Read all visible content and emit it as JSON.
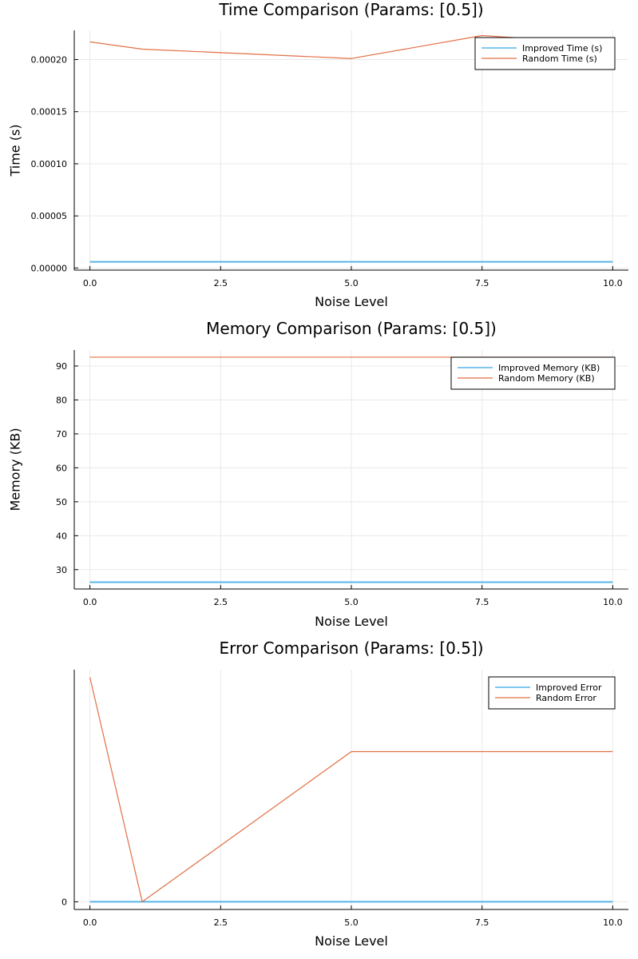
{
  "chart_data": [
    {
      "type": "line",
      "title": "Time Comparison (Params: [0.5])",
      "xlabel": "Noise Level",
      "ylabel": "Time (s)",
      "xlim": [
        -0.3,
        10.3
      ],
      "ylim": [
        -2e-06,
        0.000228
      ],
      "xticks": [
        0,
        2.5,
        5,
        7.5,
        10
      ],
      "xtick_labels": [
        "0.0",
        "2.5",
        "5.0",
        "7.5",
        "10.0"
      ],
      "yticks": [
        0,
        5e-05,
        0.0001,
        0.00015,
        0.0002
      ],
      "ytick_labels": [
        "0.00000",
        "0.00005",
        "0.00010",
        "0.00015",
        "0.00020"
      ],
      "grid": true,
      "legend_position": "top-right",
      "x": [
        0,
        1,
        5,
        7.5,
        10
      ],
      "series": [
        {
          "name": "Improved Time (s)",
          "color": "#56B4E9",
          "values": [
            6e-06,
            6e-06,
            6e-06,
            6e-06,
            6e-06
          ]
        },
        {
          "name": "Random Time (s)",
          "color": "#E26F46",
          "values": [
            0.000217,
            0.00021,
            0.000201,
            0.000223,
            0.000215
          ]
        }
      ]
    },
    {
      "type": "line",
      "title": "Memory Comparison (Params: [0.5])",
      "xlabel": "Noise Level",
      "ylabel": "Memory (KB)",
      "xlim": [
        -0.3,
        10.3
      ],
      "ylim": [
        24.3,
        94.7
      ],
      "xticks": [
        0,
        2.5,
        5,
        7.5,
        10
      ],
      "xtick_labels": [
        "0.0",
        "2.5",
        "5.0",
        "7.5",
        "10.0"
      ],
      "yticks": [
        30,
        40,
        50,
        60,
        70,
        80,
        90
      ],
      "ytick_labels": [
        "30",
        "40",
        "50",
        "60",
        "70",
        "80",
        "90"
      ],
      "grid": true,
      "legend_position": "top-right",
      "x": [
        0,
        1,
        5,
        7.5,
        10
      ],
      "series": [
        {
          "name": "Improved Memory (KB)",
          "color": "#56B4E9",
          "values": [
            26.3,
            26.3,
            26.3,
            26.3,
            26.3
          ]
        },
        {
          "name": "Random Memory (KB)",
          "color": "#E26F46",
          "values": [
            92.6,
            92.6,
            92.6,
            92.6,
            92.6
          ]
        }
      ]
    },
    {
      "type": "line",
      "title": "Error Comparison (Params: [0.5])",
      "xlabel": "Noise Level",
      "ylabel": "",
      "xlim": [
        -0.3,
        10.3
      ],
      "ylim": [
        -3.3,
        100
      ],
      "xticks": [
        0,
        2.5,
        5,
        7.5,
        10
      ],
      "xtick_labels": [
        "0.0",
        "2.5",
        "5.0",
        "7.5",
        "10.0"
      ],
      "yticks": [
        0
      ],
      "ytick_labels": [
        "0"
      ],
      "grid": true,
      "legend_position": "top-right",
      "x": [
        0,
        1,
        5,
        7.5,
        10
      ],
      "series": [
        {
          "name": "Improved Error",
          "color": "#56B4E9",
          "values": [
            0,
            0,
            0,
            0,
            0
          ]
        },
        {
          "name": "Random Error",
          "color": "#E26F46",
          "values": [
            96.7,
            0,
            64.7,
            64.7,
            64.7
          ]
        }
      ]
    }
  ]
}
